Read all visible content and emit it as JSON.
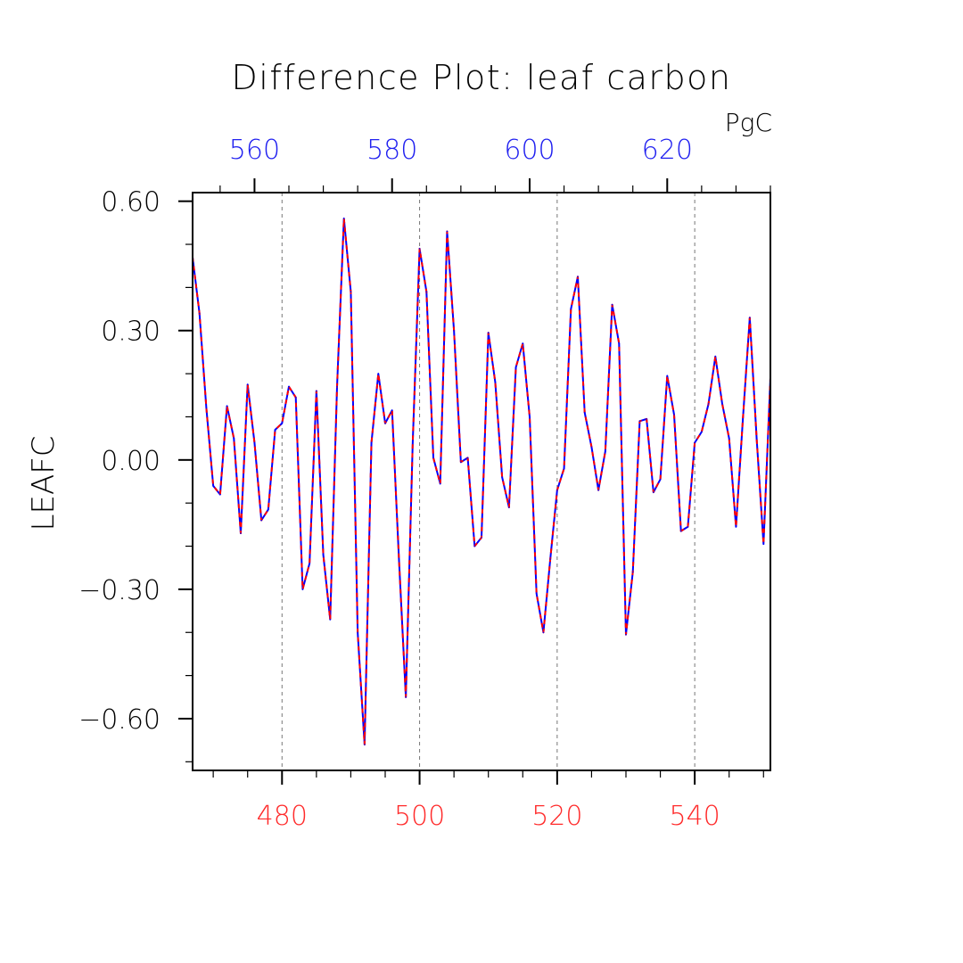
{
  "chart_data": {
    "type": "line",
    "title": "Difference Plot: leaf carbon",
    "units": "PgC",
    "ylabel": "LEAFC",
    "xlabel": "",
    "ylim": [
      -0.72,
      0.62
    ],
    "yticks": [
      0.6,
      0.3,
      0.0,
      -0.3,
      -0.6
    ],
    "ytick_labels": [
      "0.60",
      "0.30",
      "0.00",
      "−0.30",
      "−0.60"
    ],
    "yminor_step": 0.1,
    "bottom_axis": {
      "color": "#ff2a2a",
      "range": [
        467,
        551
      ],
      "ticks": [
        480,
        500,
        520,
        540
      ],
      "tick_labels": [
        "480",
        "500",
        "520",
        "540"
      ],
      "minor_step": 5
    },
    "top_axis": {
      "color": "#2020f0",
      "range": [
        551,
        635
      ],
      "ticks": [
        560,
        580,
        600,
        620
      ],
      "tick_labels": [
        "560",
        "580",
        "600",
        "620"
      ],
      "minor_step": 5
    },
    "grid": "vertical-dashed",
    "series": [
      {
        "line_colors": [
          "#0000ff",
          "#ff0000"
        ],
        "style": "blue solid with red dashed overlay",
        "x": [
          467,
          468,
          469,
          470,
          471,
          472,
          473,
          474,
          475,
          476,
          477,
          478,
          479,
          480,
          481,
          482,
          483,
          484,
          485,
          486,
          487,
          488,
          489,
          490,
          491,
          492,
          493,
          494,
          495,
          496,
          497,
          498,
          499,
          500,
          501,
          502,
          503,
          504,
          505,
          506,
          507,
          508,
          509,
          510,
          511,
          512,
          513,
          514,
          515,
          516,
          517,
          518,
          519,
          520,
          521,
          522,
          523,
          524,
          525,
          526,
          527,
          528,
          529,
          530,
          531,
          532,
          533,
          534,
          535,
          536,
          537,
          538,
          539,
          540,
          541,
          542,
          543,
          544,
          545,
          546,
          547,
          548,
          549,
          550,
          551
        ],
        "values": [
          0.47,
          0.34,
          0.12,
          -0.06,
          -0.08,
          0.125,
          0.05,
          -0.17,
          0.175,
          0.04,
          -0.14,
          -0.115,
          0.07,
          0.085,
          0.17,
          0.145,
          -0.3,
          -0.24,
          0.16,
          -0.22,
          -0.37,
          0.17,
          0.56,
          0.39,
          -0.4,
          -0.66,
          0.04,
          0.2,
          0.085,
          0.115,
          -0.23,
          -0.55,
          0.04,
          0.49,
          0.39,
          0.005,
          -0.055,
          0.53,
          0.3,
          -0.005,
          0.005,
          -0.2,
          -0.18,
          0.295,
          0.18,
          -0.04,
          -0.11,
          0.215,
          0.27,
          0.1,
          -0.31,
          -0.4,
          -0.23,
          -0.07,
          -0.02,
          0.35,
          0.425,
          0.11,
          0.03,
          -0.07,
          0.02,
          0.36,
          0.27,
          -0.405,
          -0.26,
          0.09,
          0.095,
          -0.075,
          -0.045,
          0.195,
          0.105,
          -0.165,
          -0.155,
          0.04,
          0.065,
          0.13,
          0.24,
          0.13,
          0.05,
          -0.155,
          0.095,
          0.33,
          0.05,
          -0.195,
          0.19
        ]
      }
    ]
  }
}
